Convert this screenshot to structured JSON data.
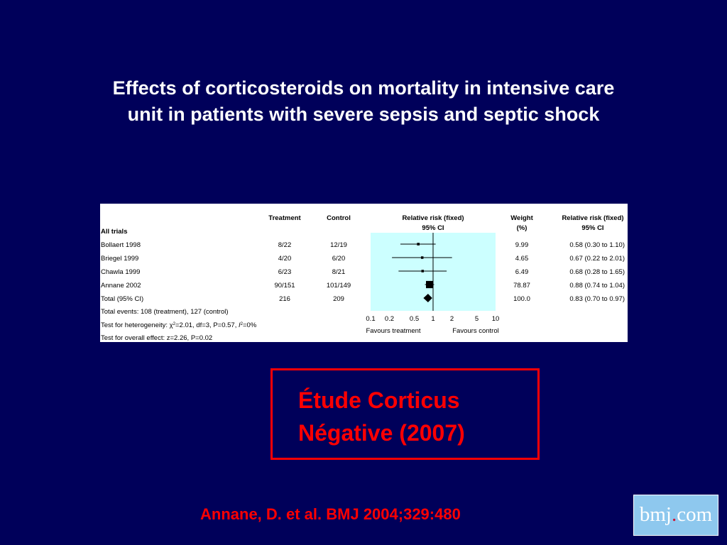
{
  "title": {
    "line1": "Effects of corticosteroids on mortality in intensive care",
    "line2": "unit in patients with severe sepsis and septic shock"
  },
  "chart_data": {
    "type": "forest",
    "headers": {
      "treatment": "Treatment",
      "control": "Control",
      "rr_title_1": "Relative risk (fixed)",
      "rr_title_2": "95% CI",
      "weight_1": "Weight",
      "weight_2": "(%)",
      "rr_value_1": "Relative risk (fixed)",
      "rr_value_2": "95% CI"
    },
    "group_label": "All trials",
    "studies": [
      {
        "name": "Bollaert 1998",
        "treatment": "8/22",
        "control": "12/19",
        "rr": 0.58,
        "lo": 0.3,
        "hi": 1.1,
        "weight": "9.99",
        "ci_text": "0.58 (0.30 to 1.10)"
      },
      {
        "name": "Briegel 1999",
        "treatment": "4/20",
        "control": "6/20",
        "rr": 0.67,
        "lo": 0.22,
        "hi": 2.01,
        "weight": "4.65",
        "ci_text": "0.67 (0.22 to 2.01)"
      },
      {
        "name": "Chawla 1999",
        "treatment": "6/23",
        "control": "8/21",
        "rr": 0.68,
        "lo": 0.28,
        "hi": 1.65,
        "weight": "6.49",
        "ci_text": "0.68 (0.28 to 1.65)"
      },
      {
        "name": "Annane 2002",
        "treatment": "90/151",
        "control": "101/149",
        "rr": 0.88,
        "lo": 0.74,
        "hi": 1.04,
        "weight": "78.87",
        "ci_text": "0.88 (0.74 to 1.04)"
      }
    ],
    "total": {
      "name": "Total (95% CI)",
      "treatment": "216",
      "control": "209",
      "rr": 0.83,
      "lo": 0.7,
      "hi": 0.97,
      "weight": "100.0",
      "ci_text": "0.83 (0.70 to 0.97)"
    },
    "footer": {
      "events": "Total events: 108 (treatment), 127 (control)",
      "heterogeneity_prefix": "Test for heterogeneity: ",
      "chi": "χ",
      "heterogeneity_mid": "=2.01, df=3, P=0.57, ",
      "i_letter": "I",
      "heterogeneity_suffix": "=0%",
      "exponent": "2",
      "overall": "Test for overall effect: z=2.26, P=0.02"
    },
    "xscale": "log",
    "xlim": [
      0.1,
      10
    ],
    "ticks": [
      0.1,
      0.2,
      0.5,
      1,
      2,
      5,
      10
    ],
    "tick_labels": [
      "0.1",
      "0.2",
      "0.5",
      "1",
      "2",
      "5",
      "10"
    ],
    "favours_left": "Favours treatment",
    "favours_right": "Favours control",
    "plot_bg": "#ccffff"
  },
  "note": {
    "line1": "Étude Corticus",
    "line2": "Négative (2007)"
  },
  "citation": "Annane, D. et al. BMJ 2004;329:480",
  "logo": {
    "part1": "bmj",
    "dot": ".",
    "part2": "com"
  },
  "colors": {
    "background": "#00005a",
    "accent": "#ff0000"
  }
}
